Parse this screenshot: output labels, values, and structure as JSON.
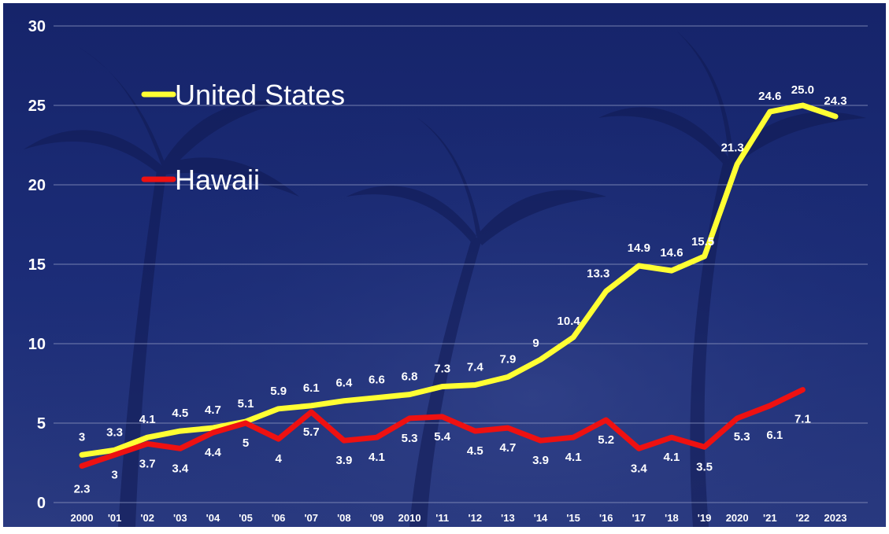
{
  "chart_data": {
    "type": "line",
    "title": "",
    "xlabel": "",
    "ylabel": "",
    "ylim": [
      0,
      30
    ],
    "yticks": [
      0,
      5,
      10,
      15,
      20,
      25,
      30
    ],
    "grid": "horizontal",
    "legend_placement": "top-left",
    "categories": [
      "2000",
      "'01",
      "'02",
      "'03",
      "'04",
      "'05",
      "'06",
      "'07",
      "'08",
      "'09",
      "2010",
      "'11",
      "'12",
      "'13",
      "'14",
      "'15",
      "'16",
      "'17",
      "'18",
      "'19",
      "2020",
      "'21",
      "'22",
      "2023"
    ],
    "series": [
      {
        "name": "United States",
        "color": "#ffff33",
        "values": [
          3,
          3.3,
          4.1,
          4.5,
          4.7,
          5.1,
          5.9,
          6.1,
          6.4,
          6.6,
          6.8,
          7.3,
          7.4,
          7.9,
          9,
          10.4,
          13.3,
          14.9,
          14.6,
          15.5,
          21.3,
          24.6,
          25.0,
          24.3
        ],
        "labels": [
          "3",
          "3.3",
          "4.1",
          "4.5",
          "4.7",
          "5.1",
          "5.9",
          "6.1",
          "6.4",
          "6.6",
          "6.8",
          "7.3",
          "7.4",
          "7.9",
          "9",
          "10.4",
          "13.3",
          "14.9",
          "14.6",
          "15.5",
          "21.3",
          "24.6",
          "25.0",
          "24.3"
        ]
      },
      {
        "name": "Hawaii",
        "color": "#ee1111",
        "values": [
          2.3,
          3,
          3.7,
          3.4,
          4.4,
          5,
          4,
          5.7,
          3.9,
          4.1,
          5.3,
          5.4,
          4.5,
          4.7,
          3.9,
          4.1,
          5.2,
          3.4,
          4.1,
          3.5,
          5.3,
          6.1,
          7.1,
          null
        ],
        "labels": [
          "2.3",
          "3",
          "3.7",
          "3.4",
          "4.4",
          "5",
          "4",
          "5.7",
          "3.9",
          "4.1",
          "5.3",
          "5.4",
          "4.5",
          "4.7",
          "3.9",
          "4.1",
          "5.2",
          "3.4",
          "4.1",
          "3.5",
          "5.3",
          "6.1",
          "7.1",
          null
        ]
      }
    ]
  },
  "colors": {
    "background": "#1a2a70",
    "gridline": "#8c95bf",
    "text": "#ffffff"
  }
}
